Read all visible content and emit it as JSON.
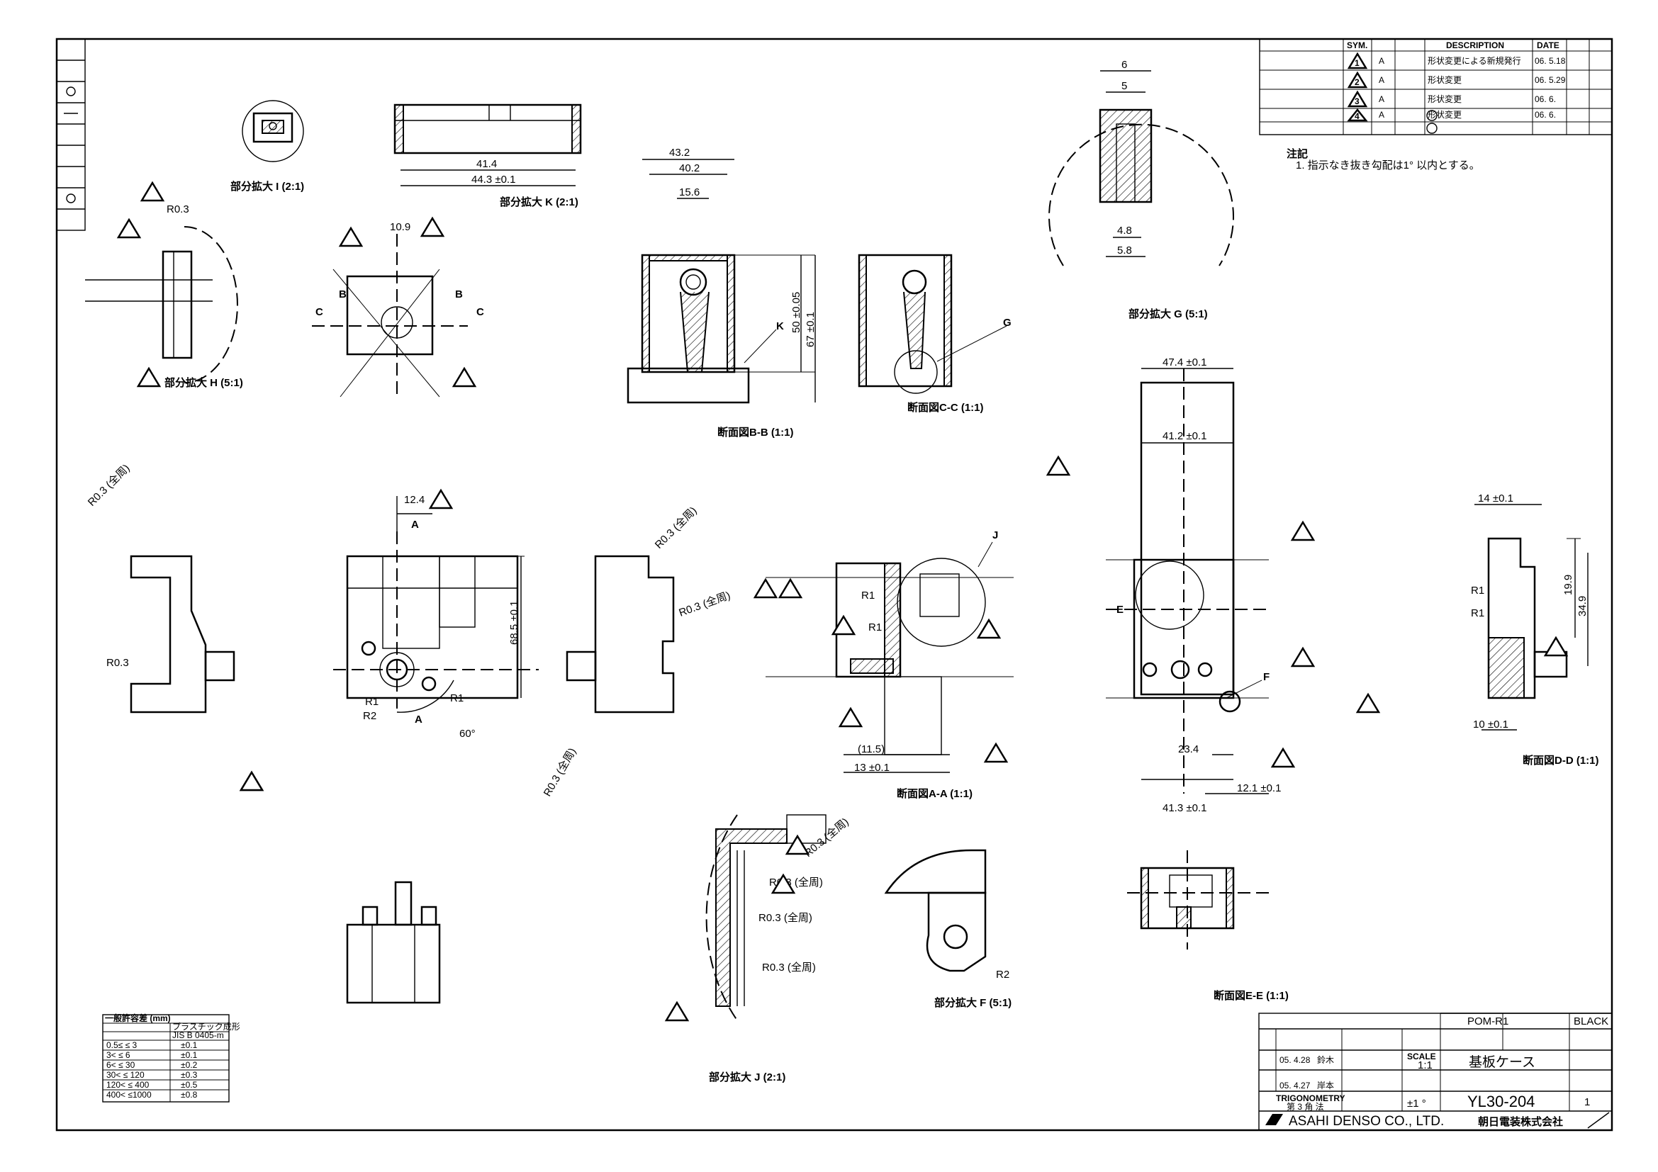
{
  "title_block": {
    "material_header": "POM-R1",
    "color_header": "BLACK",
    "part_name": "基板ケース",
    "scale_label": "SCALE",
    "scale_value": "1:1",
    "appr_date": "05. 4.28",
    "appr_name": "鈴木",
    "desg_date": "05. 4.27",
    "desg_name": "岸本",
    "drawing_no": "YL30-204",
    "sheet_no": "1",
    "company_en": "ASAHI DENSO CO., LTD.",
    "company_jp": "朝日電装株式会社",
    "trig": "TRIGONOMETRY",
    "trig_sub": "第 3 角 法",
    "angle_tol": "±1 °"
  },
  "revisions": {
    "header": {
      "sym": "SYM.",
      "desc": "DESCRIPTION",
      "date": "DATE"
    },
    "rows": [
      {
        "sym": "1",
        "ref": "A",
        "desc": "形状変更による新規発行",
        "date": "06. 5.18"
      },
      {
        "sym": "2",
        "ref": "A",
        "desc": "形状変更",
        "date": "06. 5.29"
      },
      {
        "sym": "3",
        "ref": "A",
        "desc": "形状変更",
        "date": "06. 6."
      },
      {
        "sym": "4",
        "ref": "A",
        "desc": "形状変更",
        "date": "06. 6."
      }
    ],
    "note_title": "注記",
    "note_text": "1. 指示なき抜き勾配は1° 以内とする。"
  },
  "tolerance_table": {
    "header": "一般許容差 (mm)",
    "col_plastic": "プラスチック成形",
    "col_std": "JIS B 0405-m",
    "rows": [
      {
        "range": "0.5≤ ≤ 3",
        "tol": "±0.1"
      },
      {
        "range": "3< ≤ 6",
        "tol": "±0.1"
      },
      {
        "range": "6< ≤ 30",
        "tol": "±0.2"
      },
      {
        "range": "30< ≤ 120",
        "tol": "±0.3"
      },
      {
        "range": "120< ≤ 400",
        "tol": "±0.5"
      },
      {
        "range": "400< ≤1000",
        "tol": "±0.8"
      }
    ]
  },
  "view_labels": {
    "detail_i": "部分拡大 I (2:1)",
    "detail_k": "部分拡大 K (2:1)",
    "detail_h": "部分拡大 H (5:1)",
    "detail_g": "部分拡大 G (5:1)",
    "detail_f": "部分拡大 F (5:1)",
    "detail_j": "部分拡大 J (2:1)",
    "section_bb": "断面図B-B (1:1)",
    "section_cc": "断面図C-C (1:1)",
    "section_aa": "断面図A-A (1:1)",
    "section_dd": "断面図D-D (1:1)",
    "section_ee": "断面図E-E (1:1)"
  },
  "dims": {
    "d41_4": "41.4",
    "d44_3": "44.3 ±0.1",
    "d43_2": "43.2",
    "d40_2": "40.2",
    "d15_6": "15.6",
    "d67": "67 ±0.1",
    "d50": "50 ±0.05",
    "d47_4": "47.4 ±0.1",
    "d41_2": "41.2 ±0.1",
    "d41_3": "41.3 ±0.1",
    "d23_4": "23.4",
    "d12_1": "12.1 ±0.1",
    "d68_5": "68.5 ±0.1",
    "d12_4": "12.4",
    "d60deg": "60°",
    "d34_9": "34.9",
    "d19_9": "19.9",
    "d14": "14 ±0.1",
    "d10": "10 ±0.1",
    "d13": "13 ±0.1",
    "d11_5": "(11.5)",
    "d6": "6",
    "d5": "5",
    "d4_8": "4.8",
    "d5_8": "5.8",
    "d10_9": "10.9",
    "r03": "R0.3",
    "r03_all": "R0.3 (全周)",
    "r1": "R1",
    "r2": "R2",
    "label_k": "K",
    "label_g": "G",
    "label_j": "J",
    "label_f": "F",
    "label_e": "E",
    "label_a": "A",
    "label_b": "B",
    "label_c": "C"
  }
}
